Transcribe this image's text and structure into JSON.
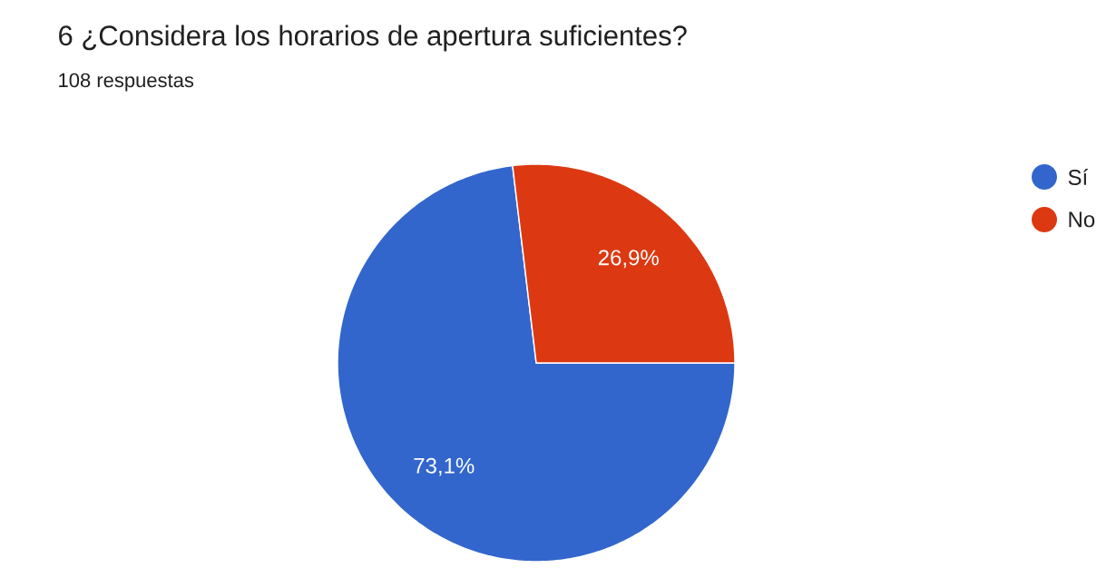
{
  "chart_data": {
    "type": "pie",
    "title": "6 ¿Considera los horarios de apertura suficientes?",
    "subtitle": "108 respuestas",
    "categories": [
      "Sí",
      "No"
    ],
    "values": [
      73.1,
      26.9
    ],
    "colors": [
      "#3366cc",
      "#dc3912"
    ],
    "value_labels": [
      "73,1%",
      "26,9%"
    ],
    "legend": "top right"
  }
}
